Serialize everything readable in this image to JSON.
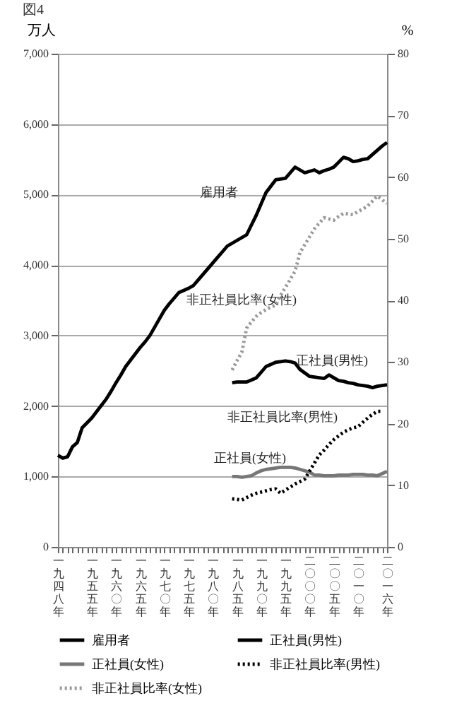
{
  "chart_data": {
    "type": "line",
    "title": "図4",
    "ylabel": "万人",
    "y2label": "%",
    "categories": [
      "一九四八年",
      null,
      null,
      null,
      null,
      null,
      null,
      "一九五五年",
      null,
      null,
      null,
      null,
      "一九六〇年",
      null,
      null,
      null,
      null,
      "一九六五年",
      null,
      null,
      null,
      null,
      "一九七〇年",
      null,
      null,
      null,
      null,
      "一九七五年",
      null,
      null,
      null,
      null,
      "一九八〇年",
      null,
      null,
      null,
      null,
      "一九八五年",
      null,
      null,
      null,
      null,
      "一九九〇年",
      null,
      null,
      null,
      null,
      "一九九五年",
      null,
      null,
      null,
      null,
      "二〇〇〇年",
      null,
      null,
      null,
      null,
      "二〇〇五年",
      null,
      null,
      null,
      null,
      "二〇一〇年",
      null,
      null,
      null,
      null,
      null,
      "二〇一六年"
    ],
    "series": [
      {
        "name": "雇用者",
        "color": "#000000",
        "line_style": "solid",
        "values": [
          1300,
          1260,
          1280,
          1420,
          1480,
          1690,
          1760,
          1830,
          1920,
          2010,
          2100,
          2210,
          2330,
          2440,
          2560,
          2650,
          2740,
          2830,
          2910,
          3000,
          3120,
          3240,
          3360,
          3450,
          3530,
          3610,
          3640,
          3670,
          3710,
          3790,
          3870,
          3950,
          4030,
          4110,
          4190,
          4270,
          4310,
          4350,
          4390,
          4430,
          4570,
          4710,
          4870,
          5030,
          5120,
          5210,
          5220,
          5230,
          5310,
          5390,
          5350,
          5310,
          5330,
          5350,
          5310,
          5340,
          5360,
          5390,
          5460,
          5530,
          5510,
          5470,
          5480,
          5500,
          5510,
          5570,
          5630,
          5690,
          5740
        ]
      },
      {
        "name": "正社員(男性)",
        "color": "#000000",
        "line_style": "solid",
        "values": [
          null,
          null,
          null,
          null,
          null,
          null,
          null,
          null,
          null,
          null,
          null,
          null,
          null,
          null,
          null,
          null,
          null,
          null,
          null,
          null,
          null,
          null,
          null,
          null,
          null,
          null,
          null,
          null,
          null,
          null,
          null,
          null,
          null,
          null,
          null,
          null,
          2330,
          2340,
          2340,
          2340,
          2370,
          2400,
          2480,
          2560,
          2590,
          2620,
          2630,
          2640,
          2630,
          2610,
          2520,
          2470,
          2420,
          2410,
          2400,
          2390,
          2440,
          2400,
          2360,
          2350,
          2330,
          2320,
          2300,
          2290,
          2280,
          2260,
          2280,
          2290,
          2300
        ]
      },
      {
        "name": "正社員(女性)",
        "color": "#777777",
        "line_style": "solid",
        "values": [
          null,
          null,
          null,
          null,
          null,
          null,
          null,
          null,
          null,
          null,
          null,
          null,
          null,
          null,
          null,
          null,
          null,
          null,
          null,
          null,
          null,
          null,
          null,
          null,
          null,
          null,
          null,
          null,
          null,
          null,
          null,
          null,
          null,
          null,
          null,
          null,
          1000,
          1000,
          990,
          1000,
          1010,
          1050,
          1080,
          1100,
          1110,
          1120,
          1130,
          1130,
          1130,
          1120,
          1100,
          1080,
          1060,
          1020,
          1020,
          1010,
          1010,
          1010,
          1020,
          1020,
          1020,
          1030,
          1030,
          1030,
          1020,
          1020,
          1010,
          1040,
          1070
        ]
      },
      {
        "name": "非正社員比率(男性)",
        "color": "#000000",
        "line_style": "dotted",
        "axis": "y2",
        "values": [
          null,
          null,
          null,
          null,
          null,
          null,
          null,
          null,
          null,
          null,
          null,
          null,
          null,
          null,
          null,
          null,
          null,
          null,
          null,
          null,
          null,
          null,
          null,
          null,
          null,
          null,
          null,
          null,
          null,
          null,
          null,
          null,
          null,
          null,
          null,
          null,
          7.8,
          7.7,
          7.6,
          8.0,
          8.4,
          8.7,
          8.9,
          9.1,
          9.3,
          9.4,
          8.7,
          9.2,
          9.7,
          10.2,
          10.6,
          11.0,
          12.3,
          13.6,
          14.9,
          15.7,
          16.6,
          17.4,
          18.0,
          18.6,
          19.0,
          19.3,
          19.5,
          20.2,
          20.9,
          21.5,
          22.0,
          22.0,
          null
        ]
      },
      {
        "name": "非正社員比率(女性)",
        "color": "#999999",
        "line_style": "dotted",
        "axis": "y2",
        "values": [
          null,
          null,
          null,
          null,
          null,
          null,
          null,
          null,
          null,
          null,
          null,
          null,
          null,
          null,
          null,
          null,
          null,
          null,
          null,
          null,
          null,
          null,
          null,
          null,
          null,
          null,
          null,
          null,
          null,
          null,
          null,
          null,
          null,
          null,
          null,
          null,
          28.7,
          30.2,
          31.6,
          35.5,
          36.5,
          37.4,
          38.0,
          38.5,
          38.9,
          39.2,
          40.8,
          42.1,
          43.4,
          44.7,
          47.7,
          49.0,
          50.3,
          51.6,
          52.5,
          53.4,
          53.2,
          53.0,
          53.6,
          54.1,
          54.0,
          53.9,
          54.4,
          54.8,
          55.3,
          56.1,
          56.9,
          56.3,
          55.7
        ]
      }
    ],
    "annotations": [
      "雇用者",
      "非正社員比率(女性)",
      "正社員(男性)",
      "非正社員比率(男性)",
      "正社員(女性)"
    ],
    "ylim": [
      0,
      7000
    ],
    "yticks": [
      0,
      {
        "value": 1000,
        "label": "1,000"
      },
      {
        "value": 2000,
        "label": "2,000"
      },
      {
        "value": 3000,
        "label": "3,000"
      },
      {
        "value": 4000,
        "label": "4,000"
      },
      {
        "value": 5000,
        "label": "5,000"
      },
      {
        "value": 6000,
        "label": "6,000"
      },
      {
        "value": 7000,
        "label": "7,000"
      }
    ],
    "y2lim": [
      0,
      80
    ],
    "y2ticks": [
      0,
      10,
      20,
      30,
      40,
      50,
      60,
      70,
      80
    ],
    "grid": "y",
    "legend": "bottom"
  }
}
